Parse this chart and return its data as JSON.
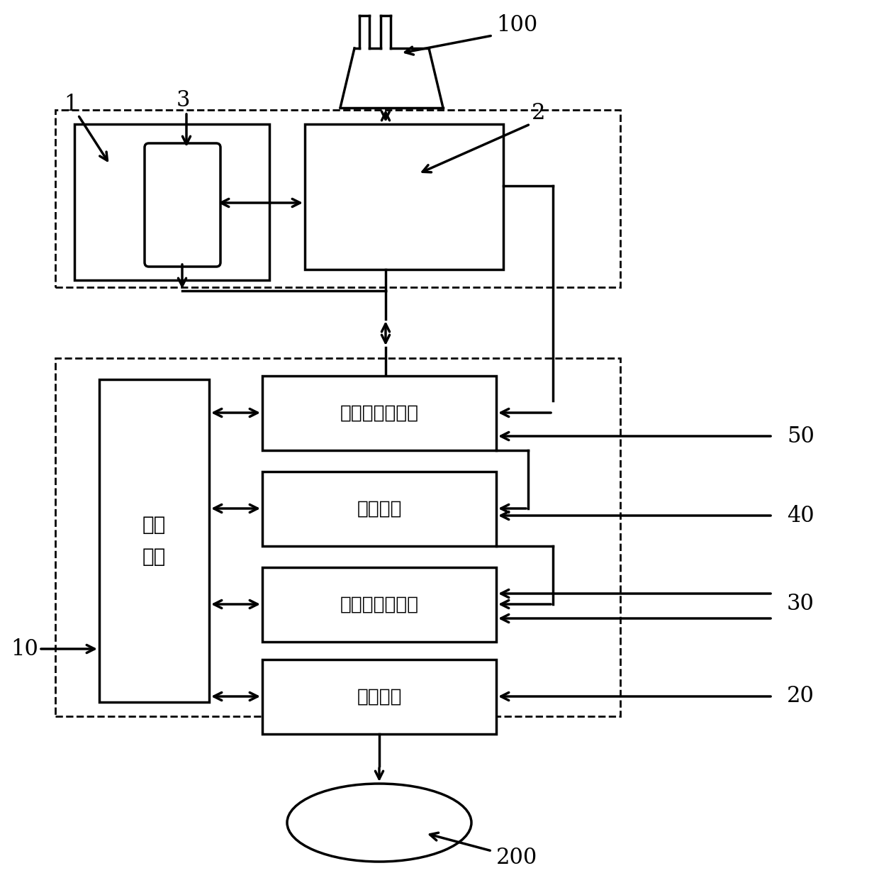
{
  "bg_color": "#ffffff",
  "line_color": "#000000",
  "labels": {
    "main_ctrl": "主控\n电路",
    "temp": "温度采集总电路",
    "drive": "驱动电路",
    "pressure": "压力采集总电路",
    "comm": "通信电路",
    "100": "100",
    "200": "200",
    "1": "1",
    "2": "2",
    "3": "3",
    "10": "10",
    "20": "20",
    "30": "30",
    "40": "40",
    "50": "50"
  },
  "figsize": [
    12.4,
    12.62
  ],
  "dpi": 100
}
